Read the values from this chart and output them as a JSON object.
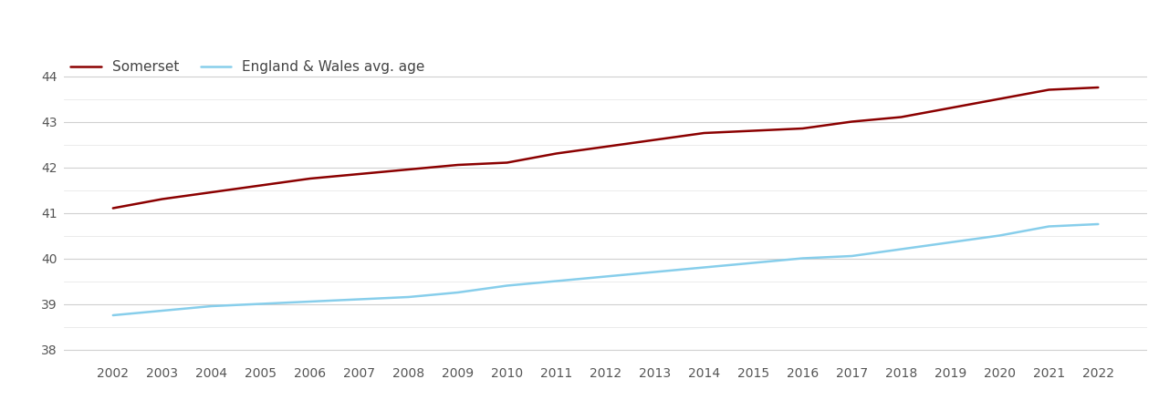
{
  "years": [
    2002,
    2003,
    2004,
    2005,
    2006,
    2007,
    2008,
    2009,
    2010,
    2011,
    2012,
    2013,
    2014,
    2015,
    2016,
    2017,
    2018,
    2019,
    2020,
    2021,
    2022
  ],
  "somerset": [
    41.1,
    41.3,
    41.45,
    41.6,
    41.75,
    41.85,
    41.95,
    42.05,
    42.1,
    42.3,
    42.45,
    42.6,
    42.75,
    42.8,
    42.85,
    43.0,
    43.1,
    43.3,
    43.5,
    43.7,
    43.75
  ],
  "england_wales": [
    38.75,
    38.85,
    38.95,
    39.0,
    39.05,
    39.1,
    39.15,
    39.25,
    39.4,
    39.5,
    39.6,
    39.7,
    39.8,
    39.9,
    40.0,
    40.05,
    40.2,
    40.35,
    40.5,
    40.7,
    40.75
  ],
  "somerset_color": "#8B0000",
  "england_wales_color": "#87CEEB",
  "somerset_label": "Somerset",
  "england_wales_label": "England & Wales avg. age",
  "legend_text_color": "#444444",
  "ylim": [
    37.75,
    44.5
  ],
  "yticks": [
    38,
    39,
    40,
    41,
    42,
    43,
    44
  ],
  "minor_yticks": [
    38.5,
    39.5,
    40.5,
    41.5,
    42.5,
    43.5
  ],
  "background_color": "#ffffff",
  "grid_color": "#d0d0d0",
  "minor_grid_color": "#e8e8e8",
  "line_width": 1.8,
  "legend_fontsize": 11,
  "tick_fontsize": 10,
  "figsize": [
    12.7,
    4.5
  ],
  "dpi": 100
}
